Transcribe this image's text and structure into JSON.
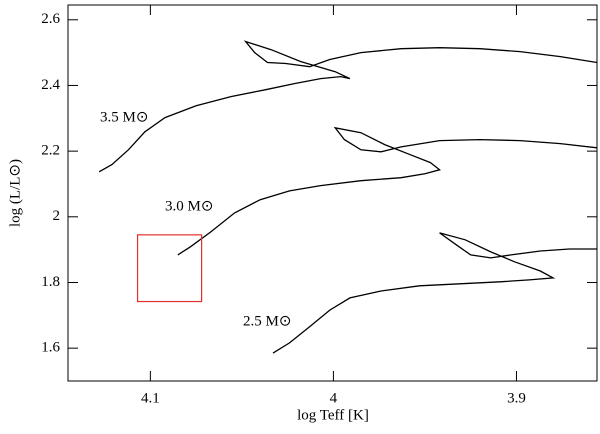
{
  "chart_data": {
    "type": "line",
    "x_label": "log Teff [K]",
    "y_label": "log (L/L⊙)",
    "xlim": [
      4.145,
      3.856
    ],
    "ylim": [
      1.5,
      2.645
    ],
    "xticks": [
      4.1,
      4,
      3.9
    ],
    "yticks": [
      1.6,
      1.8,
      2,
      2.2,
      2.4,
      2.6
    ],
    "series": [
      {
        "name": "3.5 M⊙",
        "color": "#000000",
        "x": [
          4.128,
          4.121,
          4.112,
          4.103,
          4.092,
          4.075,
          4.056,
          4.037,
          4.021,
          4.007,
          3.996,
          3.991,
          3.999,
          4.018,
          4.034,
          4.048,
          4.043,
          4.036,
          4.026,
          4.013,
          4.002,
          3.985,
          3.963,
          3.942,
          3.92,
          3.898,
          3.876,
          3.856
        ],
        "values": [
          2.137,
          2.159,
          2.204,
          2.259,
          2.302,
          2.338,
          2.366,
          2.387,
          2.406,
          2.421,
          2.427,
          2.421,
          2.442,
          2.473,
          2.509,
          2.534,
          2.5,
          2.47,
          2.467,
          2.457,
          2.479,
          2.5,
          2.512,
          2.515,
          2.512,
          2.503,
          2.488,
          2.47
        ]
      },
      {
        "name": "3.0 M⊙",
        "color": "#000000",
        "x": [
          4.085,
          4.078,
          4.067,
          4.054,
          4.04,
          4.024,
          4.007,
          3.985,
          3.963,
          3.95,
          3.942,
          3.947,
          3.958,
          3.972,
          3.985,
          3.999,
          3.994,
          3.985,
          3.974,
          3.963,
          3.942,
          3.92,
          3.898,
          3.876,
          3.856
        ],
        "values": [
          1.884,
          1.909,
          1.954,
          2.012,
          2.052,
          2.079,
          2.095,
          2.11,
          2.119,
          2.131,
          2.143,
          2.165,
          2.189,
          2.22,
          2.256,
          2.271,
          2.235,
          2.204,
          2.198,
          2.213,
          2.232,
          2.235,
          2.232,
          2.223,
          2.21
        ]
      },
      {
        "name": "2.5 M⊙",
        "color": "#000000",
        "x": [
          4.033,
          4.024,
          4.013,
          4.002,
          3.991,
          3.974,
          3.953,
          3.931,
          3.909,
          3.893,
          3.88,
          3.887,
          3.901,
          3.914,
          3.928,
          3.942,
          3.933,
          3.925,
          3.914,
          3.903,
          3.887,
          3.871,
          3.856
        ],
        "values": [
          1.585,
          1.616,
          1.665,
          1.716,
          1.753,
          1.774,
          1.79,
          1.796,
          1.802,
          1.808,
          1.814,
          1.835,
          1.863,
          1.893,
          1.93,
          1.951,
          1.915,
          1.884,
          1.875,
          1.884,
          1.896,
          1.902,
          1.902
        ]
      }
    ],
    "box": {
      "x": [
        4.107,
        4.072
      ],
      "y": [
        1.742,
        1.945
      ],
      "color": "#e03030"
    }
  }
}
